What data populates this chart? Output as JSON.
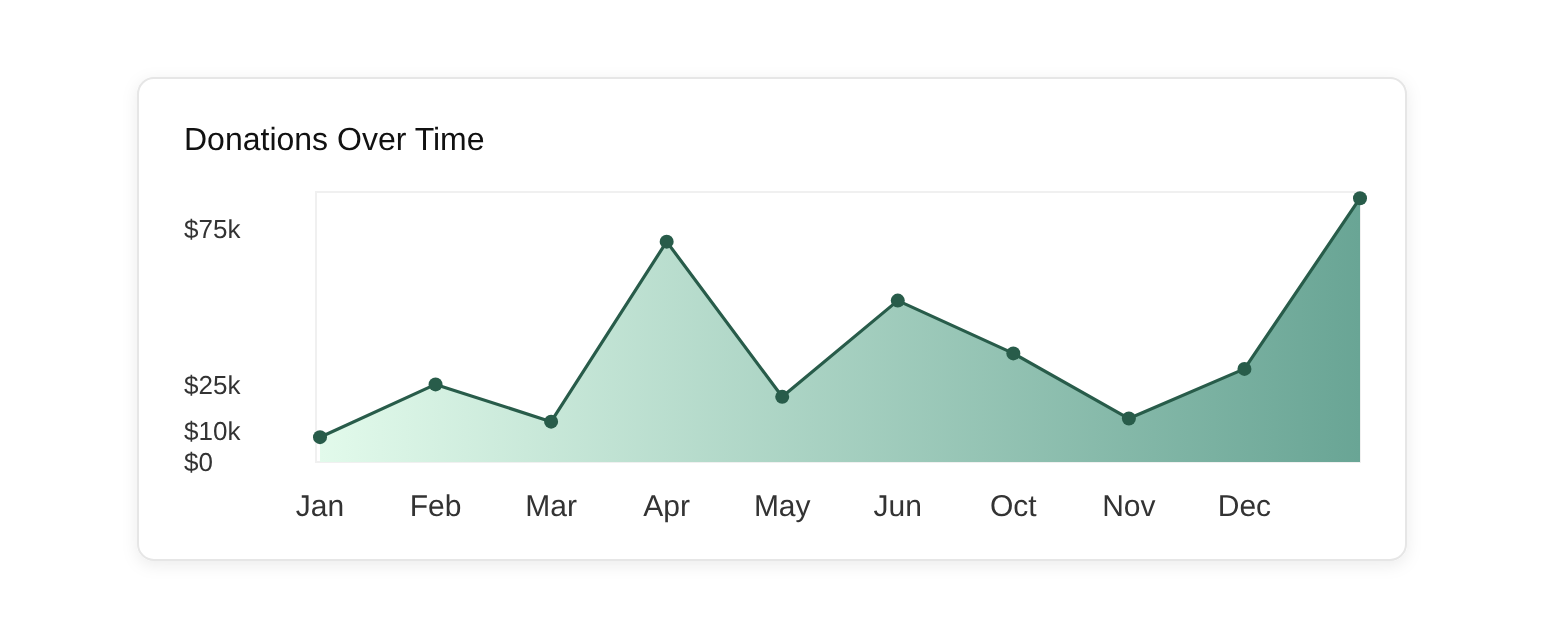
{
  "chart_data": {
    "type": "area",
    "title": "Donations Over Time",
    "categories": [
      "Jan",
      "Feb",
      "Mar",
      "Apr",
      "May",
      "Jun",
      "Oct",
      "Nov",
      "Dec",
      null
    ],
    "ylim": [
      0,
      87000
    ],
    "yticks": [
      {
        "value": 0,
        "label": "$0"
      },
      {
        "value": 10000,
        "label": "$10k"
      },
      {
        "value": 25000,
        "label": "$25k"
      },
      {
        "value": 75000,
        "label": "$75k"
      }
    ],
    "series": [
      {
        "color": "#285c4a",
        "values": [
          8000,
          25000,
          13000,
          71000,
          21000,
          52000,
          35000,
          14000,
          30000,
          85000
        ]
      }
    ],
    "marker": "circle",
    "line_style": "solid",
    "grid": false
  }
}
